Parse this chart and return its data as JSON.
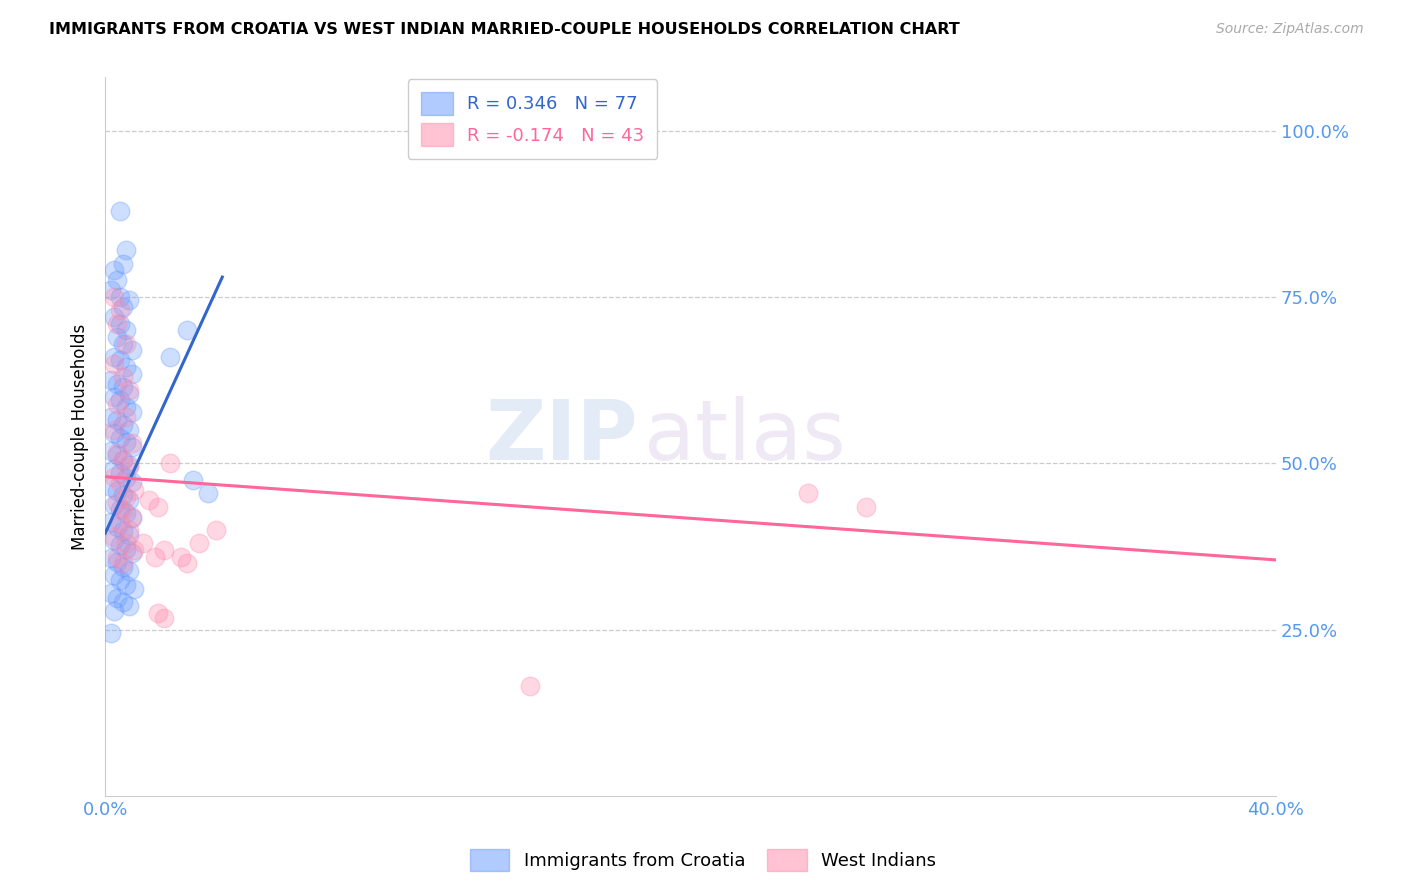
{
  "title": "IMMIGRANTS FROM CROATIA VS WEST INDIAN MARRIED-COUPLE HOUSEHOLDS CORRELATION CHART",
  "source": "Source: ZipAtlas.com",
  "ylabel": "Married-couple Households",
  "yaxis_labels": [
    "100.0%",
    "75.0%",
    "50.0%",
    "25.0%"
  ],
  "yaxis_values": [
    1.0,
    0.75,
    0.5,
    0.25
  ],
  "xlim": [
    0.0,
    0.4
  ],
  "ylim": [
    0.0,
    1.08
  ],
  "watermark_zip": "ZIP",
  "watermark_atlas": "atlas",
  "blue_color": "#6699ff",
  "pink_color": "#ff88aa",
  "blue_line_color": "#3366cc",
  "pink_line_color": "#ff6699",
  "legend1_r": "R = 0.346",
  "legend1_n": "N = 77",
  "legend2_r": "R = -0.174",
  "legend2_n": "N = 43",
  "blue_scatter": [
    [
      0.005,
      0.88
    ],
    [
      0.007,
      0.82
    ],
    [
      0.006,
      0.8
    ],
    [
      0.003,
      0.79
    ],
    [
      0.004,
      0.775
    ],
    [
      0.002,
      0.76
    ],
    [
      0.005,
      0.75
    ],
    [
      0.008,
      0.745
    ],
    [
      0.006,
      0.735
    ],
    [
      0.003,
      0.72
    ],
    [
      0.005,
      0.71
    ],
    [
      0.007,
      0.7
    ],
    [
      0.004,
      0.69
    ],
    [
      0.006,
      0.68
    ],
    [
      0.009,
      0.67
    ],
    [
      0.003,
      0.66
    ],
    [
      0.005,
      0.655
    ],
    [
      0.007,
      0.645
    ],
    [
      0.009,
      0.635
    ],
    [
      0.002,
      0.625
    ],
    [
      0.004,
      0.62
    ],
    [
      0.006,
      0.615
    ],
    [
      0.008,
      0.605
    ],
    [
      0.003,
      0.6
    ],
    [
      0.005,
      0.595
    ],
    [
      0.007,
      0.585
    ],
    [
      0.009,
      0.578
    ],
    [
      0.002,
      0.57
    ],
    [
      0.004,
      0.565
    ],
    [
      0.006,
      0.558
    ],
    [
      0.008,
      0.55
    ],
    [
      0.003,
      0.545
    ],
    [
      0.005,
      0.538
    ],
    [
      0.007,
      0.532
    ],
    [
      0.009,
      0.525
    ],
    [
      0.002,
      0.518
    ],
    [
      0.004,
      0.512
    ],
    [
      0.006,
      0.505
    ],
    [
      0.008,
      0.498
    ],
    [
      0.003,
      0.492
    ],
    [
      0.005,
      0.485
    ],
    [
      0.007,
      0.478
    ],
    [
      0.009,
      0.472
    ],
    [
      0.002,
      0.465
    ],
    [
      0.004,
      0.458
    ],
    [
      0.006,
      0.452
    ],
    [
      0.008,
      0.445
    ],
    [
      0.003,
      0.438
    ],
    [
      0.005,
      0.432
    ],
    [
      0.007,
      0.425
    ],
    [
      0.009,
      0.418
    ],
    [
      0.002,
      0.412
    ],
    [
      0.004,
      0.405
    ],
    [
      0.006,
      0.398
    ],
    [
      0.008,
      0.392
    ],
    [
      0.003,
      0.385
    ],
    [
      0.005,
      0.378
    ],
    [
      0.007,
      0.372
    ],
    [
      0.009,
      0.365
    ],
    [
      0.002,
      0.358
    ],
    [
      0.004,
      0.352
    ],
    [
      0.006,
      0.345
    ],
    [
      0.008,
      0.338
    ],
    [
      0.003,
      0.332
    ],
    [
      0.005,
      0.325
    ],
    [
      0.007,
      0.318
    ],
    [
      0.01,
      0.312
    ],
    [
      0.002,
      0.305
    ],
    [
      0.004,
      0.298
    ],
    [
      0.006,
      0.292
    ],
    [
      0.008,
      0.285
    ],
    [
      0.003,
      0.278
    ],
    [
      0.022,
      0.66
    ],
    [
      0.028,
      0.7
    ],
    [
      0.002,
      0.245
    ],
    [
      0.03,
      0.475
    ],
    [
      0.035,
      0.455
    ]
  ],
  "pink_scatter": [
    [
      0.003,
      0.75
    ],
    [
      0.005,
      0.73
    ],
    [
      0.004,
      0.71
    ],
    [
      0.007,
      0.68
    ],
    [
      0.003,
      0.65
    ],
    [
      0.006,
      0.63
    ],
    [
      0.008,
      0.61
    ],
    [
      0.004,
      0.59
    ],
    [
      0.007,
      0.57
    ],
    [
      0.003,
      0.55
    ],
    [
      0.009,
      0.53
    ],
    [
      0.004,
      0.515
    ],
    [
      0.006,
      0.505
    ],
    [
      0.008,
      0.495
    ],
    [
      0.003,
      0.48
    ],
    [
      0.005,
      0.47
    ],
    [
      0.01,
      0.46
    ],
    [
      0.007,
      0.45
    ],
    [
      0.004,
      0.44
    ],
    [
      0.006,
      0.43
    ],
    [
      0.009,
      0.42
    ],
    [
      0.005,
      0.41
    ],
    [
      0.008,
      0.4
    ],
    [
      0.003,
      0.39
    ],
    [
      0.007,
      0.38
    ],
    [
      0.01,
      0.37
    ],
    [
      0.004,
      0.36
    ],
    [
      0.006,
      0.35
    ],
    [
      0.015,
      0.445
    ],
    [
      0.018,
      0.435
    ],
    [
      0.013,
      0.38
    ],
    [
      0.02,
      0.37
    ],
    [
      0.017,
      0.36
    ],
    [
      0.022,
      0.5
    ],
    [
      0.026,
      0.36
    ],
    [
      0.028,
      0.35
    ],
    [
      0.032,
      0.38
    ],
    [
      0.038,
      0.4
    ],
    [
      0.018,
      0.275
    ],
    [
      0.02,
      0.268
    ],
    [
      0.24,
      0.455
    ],
    [
      0.26,
      0.435
    ],
    [
      0.145,
      0.165
    ]
  ],
  "blue_trendline_data": [
    [
      0.0,
      0.395
    ],
    [
      0.04,
      0.78
    ]
  ],
  "pink_trendline_data": [
    [
      0.0,
      0.48
    ],
    [
      0.4,
      0.355
    ]
  ]
}
